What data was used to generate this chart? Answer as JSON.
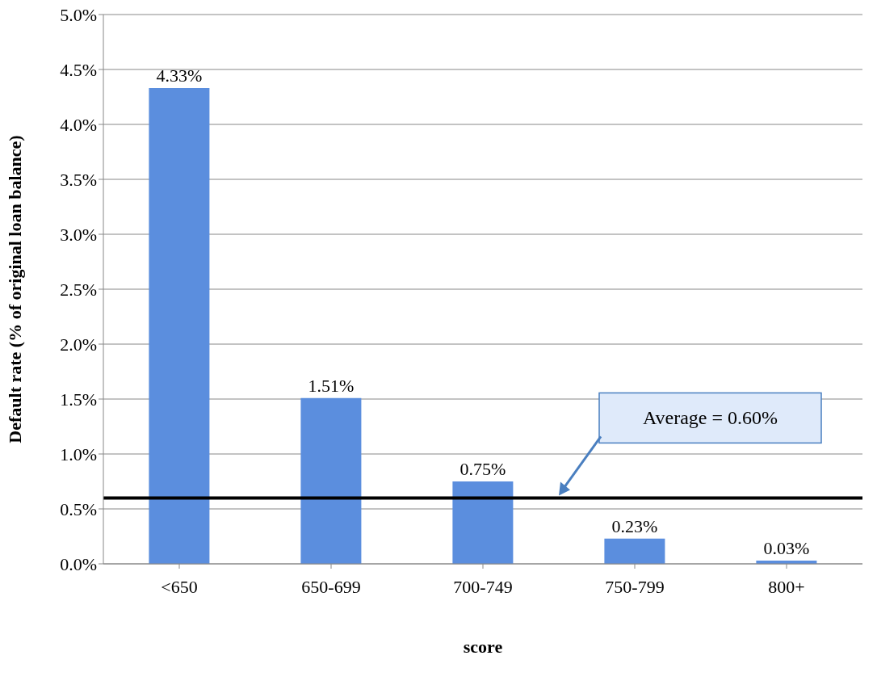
{
  "chart_data": {
    "type": "bar",
    "xlabel": "score",
    "ylabel": "Default rate (% of original loan balance)",
    "categories": [
      "<650",
      "650-699",
      "700-749",
      "750-799",
      "800+"
    ],
    "values": [
      4.33,
      1.51,
      0.75,
      0.23,
      0.03
    ],
    "value_labels": [
      "4.33%",
      "1.51%",
      "0.75%",
      "0.23%",
      "0.03%"
    ],
    "color": "#5b8ede",
    "ylim": [
      0,
      5
    ],
    "yticks": [
      {
        "value": 0,
        "label": "0.0%"
      },
      {
        "value": 0.5,
        "label": "0.5%"
      },
      {
        "value": 1,
        "label": "1.0%"
      },
      {
        "value": 1.5,
        "label": "1.5%"
      },
      {
        "value": 2,
        "label": "2.0%"
      },
      {
        "value": 2.5,
        "label": "2.5%"
      },
      {
        "value": 3,
        "label": "3.0%"
      },
      {
        "value": 3.5,
        "label": "3.5%"
      },
      {
        "value": 4,
        "label": "4.0%"
      },
      {
        "value": 4.5,
        "label": "4.5%"
      },
      {
        "value": 5,
        "label": "5.0%"
      }
    ],
    "grid": "y",
    "ref_lines": [
      {
        "axis": "y",
        "value": 0.6,
        "label": "Average = 0.60%",
        "color": "#000000",
        "line_style": "solid"
      }
    ]
  }
}
